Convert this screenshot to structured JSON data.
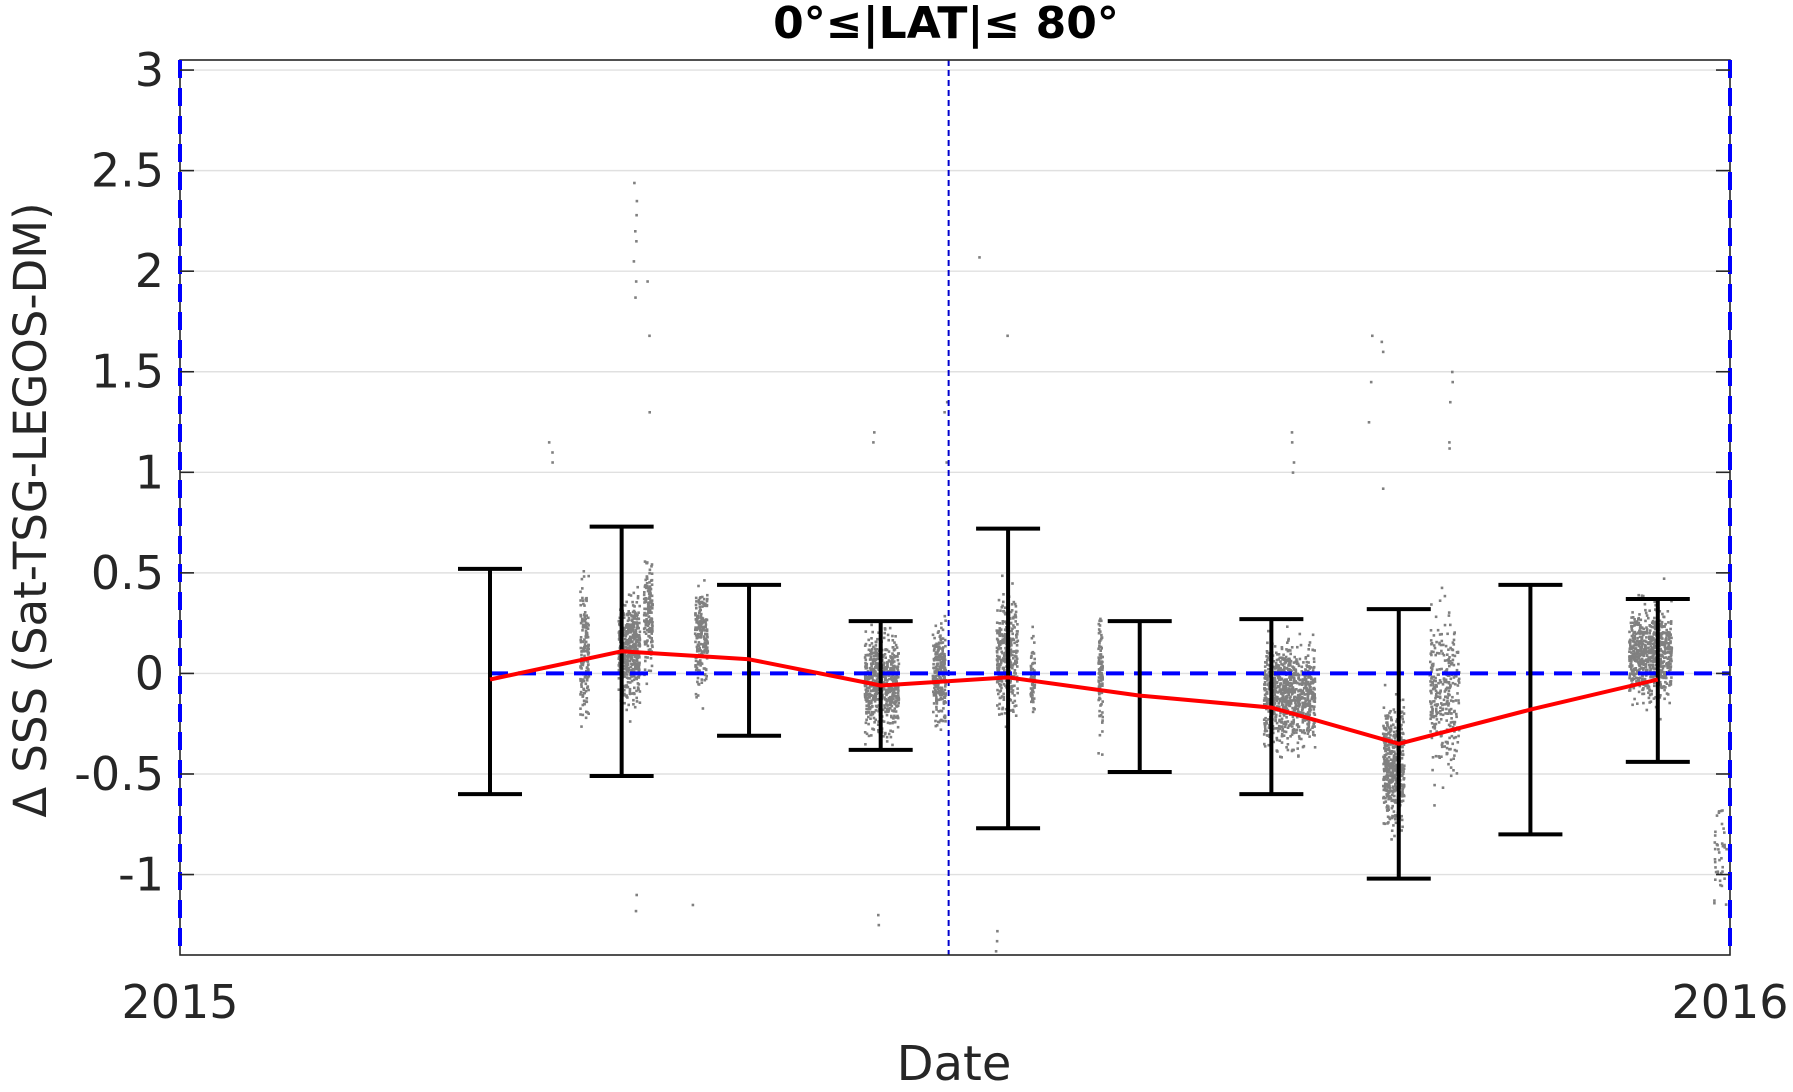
{
  "chart_data": {
    "type": "scatter",
    "title": "0°≤|LAT|≤ 80°",
    "xlabel": "Date",
    "ylabel": "Δ SSS (Sat-TSG-LEGOS-DM)",
    "xlim": [
      "2015-01-01",
      "2016-01-01"
    ],
    "ylim": [
      -1.4,
      3.05
    ],
    "x_ticks": [
      "2015",
      "2016"
    ],
    "y_ticks": [
      3,
      2.5,
      2,
      1.5,
      1,
      0.5,
      0,
      -0.5,
      -1
    ],
    "y_tick_labels": [
      "3",
      "2.5",
      "2",
      "1.5",
      "1",
      "0.5",
      "0",
      "-0.5",
      "-1"
    ],
    "grid": true,
    "colors": {
      "scatter": "#808080",
      "mean_line": "#ff0000",
      "error_bars": "#000000",
      "zero_line": "#0000ff",
      "vertical_marker": "#0000cc",
      "grid": "#e0e0e0"
    },
    "vertical_marker": {
      "x": "2015-07-01"
    },
    "zero_line": {
      "y": 0
    },
    "monthly_stats": [
      {
        "date": "2015-03-15",
        "mean": -0.03,
        "upper": 0.52,
        "lower": -0.6
      },
      {
        "date": "2015-04-15",
        "mean": 0.11,
        "upper": 0.73,
        "lower": -0.51
      },
      {
        "date": "2015-05-15",
        "mean": 0.07,
        "upper": 0.44,
        "lower": -0.31
      },
      {
        "date": "2015-06-15",
        "mean": -0.06,
        "upper": 0.26,
        "lower": -0.38
      },
      {
        "date": "2015-07-15",
        "mean": -0.02,
        "upper": 0.72,
        "lower": -0.77
      },
      {
        "date": "2015-08-15",
        "mean": -0.11,
        "upper": 0.26,
        "lower": -0.49
      },
      {
        "date": "2015-09-15",
        "mean": -0.17,
        "upper": 0.27,
        "lower": -0.6
      },
      {
        "date": "2015-10-15",
        "mean": -0.35,
        "upper": 0.32,
        "lower": -1.02
      },
      {
        "date": "2015-11-15",
        "mean": -0.18,
        "upper": 0.44,
        "lower": -0.8
      },
      {
        "date": "2015-12-15",
        "mean": -0.03,
        "upper": 0.37,
        "lower": -0.44
      }
    ],
    "scatter_clusters": [
      {
        "start": "2015-04-05",
        "end": "2015-04-07",
        "center": 0.1,
        "spread": 0.45,
        "n": 160
      },
      {
        "start": "2015-04-14",
        "end": "2015-04-19",
        "center": 0.12,
        "spread": 0.3,
        "n": 520
      },
      {
        "start": "2015-04-20",
        "end": "2015-04-22",
        "center": 0.3,
        "spread": 0.35,
        "n": 160
      },
      {
        "start": "2015-05-02",
        "end": "2015-05-05",
        "center": 0.2,
        "spread": 0.3,
        "n": 220
      },
      {
        "start": "2015-06-11",
        "end": "2015-06-19",
        "center": -0.05,
        "spread": 0.3,
        "n": 620
      },
      {
        "start": "2015-06-27",
        "end": "2015-06-30",
        "center": 0.0,
        "spread": 0.28,
        "n": 260
      },
      {
        "start": "2015-07-12",
        "end": "2015-07-17",
        "center": 0.1,
        "spread": 0.35,
        "n": 320
      },
      {
        "start": "2015-07-20",
        "end": "2015-07-21",
        "center": 0.0,
        "spread": 0.3,
        "n": 60
      },
      {
        "start": "2015-08-05",
        "end": "2015-08-06",
        "center": 0.0,
        "spread": 0.35,
        "n": 110
      },
      {
        "start": "2015-09-13",
        "end": "2015-09-25",
        "center": -0.1,
        "spread": 0.3,
        "n": 900
      },
      {
        "start": "2015-10-11",
        "end": "2015-10-16",
        "center": -0.45,
        "spread": 0.35,
        "n": 500
      },
      {
        "start": "2015-10-22",
        "end": "2015-10-29",
        "center": -0.1,
        "spread": 0.45,
        "n": 300
      },
      {
        "start": "2015-12-08",
        "end": "2015-12-18",
        "center": 0.1,
        "spread": 0.28,
        "n": 720
      },
      {
        "start": "2015-12-28",
        "end": "2015-12-31",
        "center": -0.9,
        "spread": 0.3,
        "n": 40
      }
    ],
    "scatter_outliers": [
      {
        "date": "2015-04-18",
        "values": [
          2.44,
          2.35,
          2.28,
          2.2,
          2.15,
          2.05,
          1.95,
          1.87
        ]
      },
      {
        "date": "2015-04-21",
        "values": [
          1.95,
          1.68,
          1.3
        ]
      },
      {
        "date": "2015-03-29",
        "values": [
          1.15,
          1.1,
          1.05
        ]
      },
      {
        "date": "2015-06-13",
        "values": [
          1.2,
          1.15
        ]
      },
      {
        "date": "2015-06-30",
        "values": [
          1.35,
          1.3,
          1.05
        ]
      },
      {
        "date": "2015-07-08",
        "values": [
          2.07
        ]
      },
      {
        "date": "2015-07-15",
        "values": [
          1.68
        ]
      },
      {
        "date": "2015-09-20",
        "values": [
          1.2,
          1.15,
          1.05,
          1.0
        ]
      },
      {
        "date": "2015-10-08",
        "values": [
          1.68,
          1.45,
          1.25
        ]
      },
      {
        "date": "2015-10-11",
        "values": [
          1.65,
          1.6,
          0.92
        ]
      },
      {
        "date": "2015-10-27",
        "values": [
          1.5,
          1.45,
          1.35,
          1.15,
          1.12
        ]
      },
      {
        "date": "2015-07-12",
        "values": [
          -1.28,
          -1.33,
          -1.38
        ]
      },
      {
        "date": "2015-06-14",
        "values": [
          -1.2,
          -1.25
        ]
      },
      {
        "date": "2015-05-01",
        "values": [
          -1.15
        ]
      },
      {
        "date": "2015-04-18",
        "values": [
          -1.1,
          -1.18
        ]
      }
    ]
  }
}
